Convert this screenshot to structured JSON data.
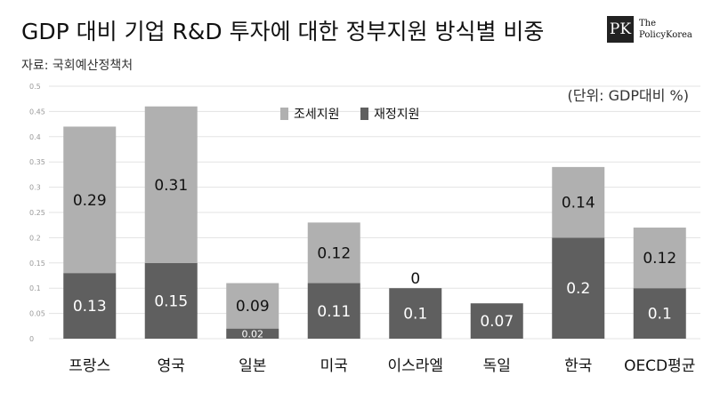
{
  "header": {
    "title": "GDP 대비 기업 R&D 투자에 대한 정부지원 방식별 비중",
    "source": "자료: 국회예산정책처",
    "unit": "(단위: GDP대비 %)"
  },
  "logo": {
    "mark": "PK",
    "line1": "The",
    "line2": "PolicyKorea"
  },
  "chart_data": {
    "type": "bar",
    "stacked": true,
    "categories": [
      "프랑스",
      "영국",
      "일본",
      "미국",
      "이스라엘",
      "독일",
      "한국",
      "OECD평균"
    ],
    "series": [
      {
        "name": "재정지원",
        "color": "#5f5f5f",
        "values": [
          0.13,
          0.15,
          0.02,
          0.11,
          0.1,
          0.07,
          0.2,
          0.1
        ]
      },
      {
        "name": "조세지원",
        "color": "#b0b0b0",
        "values": [
          0.29,
          0.31,
          0.09,
          0.12,
          0,
          null,
          0.14,
          0.12
        ]
      }
    ],
    "ylim": [
      0,
      0.5
    ],
    "yticks": [
      "0",
      "0.05",
      "0.1",
      "0.15",
      "0.2",
      "0.25",
      "0.3",
      "0.35",
      "0.4",
      "0.45",
      "0.5"
    ],
    "grid": true,
    "legend": "top-center",
    "legend_order": [
      "조세지원",
      "재정지원"
    ]
  }
}
